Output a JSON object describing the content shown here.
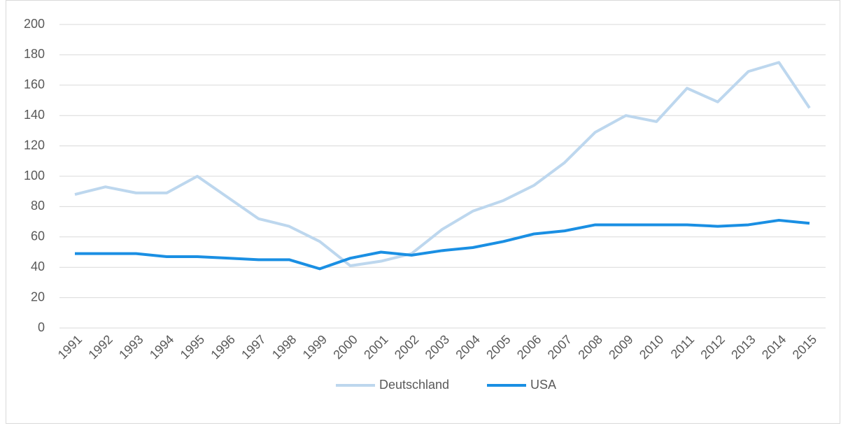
{
  "chart_data": {
    "type": "line",
    "x": [
      "1991",
      "1992",
      "1993",
      "1994",
      "1995",
      "1996",
      "1997",
      "1998",
      "1999",
      "2000",
      "2001",
      "2002",
      "2003",
      "2004",
      "2005",
      "2006",
      "2007",
      "2008",
      "2009",
      "2010",
      "2011",
      "2012",
      "2013",
      "2014",
      "2015"
    ],
    "series": [
      {
        "name": "Deutschland",
        "color": "#bdd7ee",
        "values": [
          88,
          93,
          89,
          89,
          100,
          86,
          72,
          67,
          57,
          41,
          44,
          49,
          65,
          77,
          84,
          94,
          109,
          129,
          140,
          136,
          158,
          149,
          169,
          175,
          145
        ]
      },
      {
        "name": "USA",
        "color": "#1a8fe3",
        "values": [
          49,
          49,
          49,
          47,
          47,
          46,
          45,
          45,
          39,
          46,
          50,
          48,
          51,
          53,
          57,
          62,
          64,
          68,
          68,
          68,
          68,
          67,
          68,
          71,
          69
        ]
      }
    ],
    "ylim": [
      0,
      200
    ],
    "yticks": [
      0,
      20,
      40,
      60,
      80,
      100,
      120,
      140,
      160,
      180,
      200
    ],
    "grid": true,
    "legend": "bottom"
  }
}
